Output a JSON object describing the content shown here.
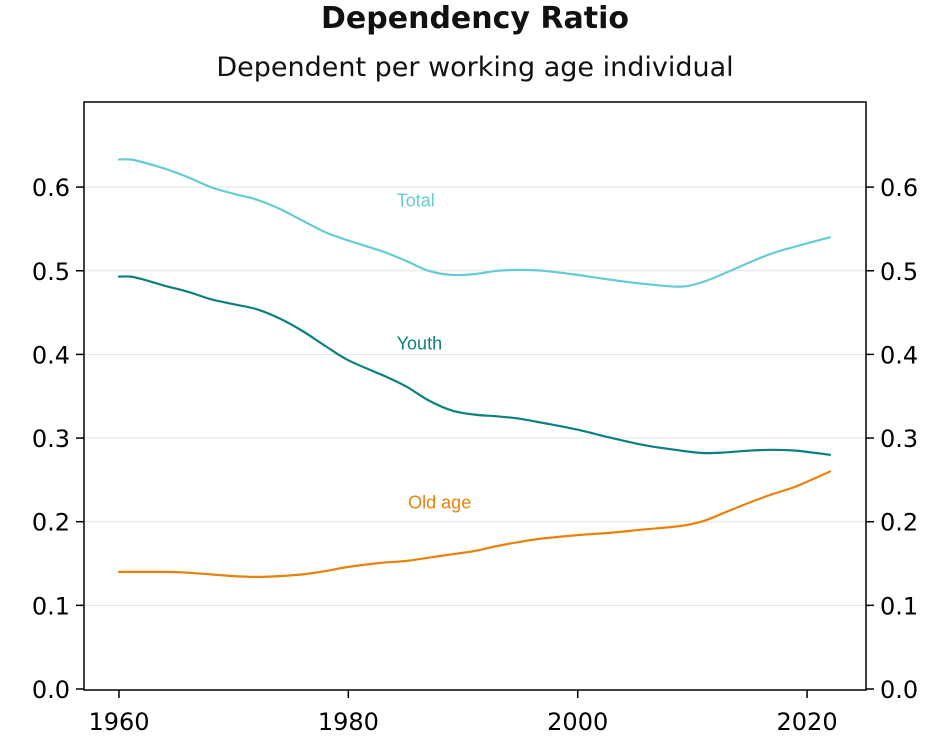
{
  "chart_data": {
    "type": "line",
    "title": "Dependency Ratio",
    "subtitle": "Dependent per working age individual",
    "xlabel": "",
    "ylabel": "",
    "xlim": [
      1960,
      2022
    ],
    "ylim": [
      0.0,
      0.7
    ],
    "x_ticks": [
      1960,
      1980,
      2000,
      2020
    ],
    "y_ticks": [
      "0.0",
      "0.1",
      "0.2",
      "0.3",
      "0.4",
      "0.5",
      "0.6"
    ],
    "grid": true,
    "x": [
      1960,
      1961,
      1962,
      1964,
      1966,
      1968,
      1970,
      1972,
      1974,
      1976,
      1978,
      1980,
      1983,
      1985,
      1987,
      1989,
      1991,
      1993,
      1995,
      1997,
      2000,
      2003,
      2006,
      2009,
      2011,
      2013,
      2015,
      2017,
      2019,
      2022
    ],
    "series": [
      {
        "name": "Total",
        "color": "#66CCD4",
        "values": [
          0.633,
          0.633,
          0.63,
          0.622,
          0.612,
          0.6,
          0.592,
          0.585,
          0.574,
          0.56,
          0.546,
          0.536,
          0.523,
          0.512,
          0.5,
          0.495,
          0.496,
          0.5,
          0.501,
          0.5,
          0.495,
          0.489,
          0.484,
          0.481,
          0.487,
          0.498,
          0.51,
          0.521,
          0.529,
          0.54
        ]
      },
      {
        "name": "Youth",
        "color": "#0A8080",
        "values": [
          0.493,
          0.493,
          0.49,
          0.482,
          0.475,
          0.466,
          0.46,
          0.454,
          0.443,
          0.428,
          0.41,
          0.393,
          0.375,
          0.362,
          0.345,
          0.333,
          0.328,
          0.326,
          0.323,
          0.318,
          0.31,
          0.3,
          0.291,
          0.285,
          0.282,
          0.283,
          0.285,
          0.286,
          0.285,
          0.28
        ]
      },
      {
        "name": "Old age",
        "color": "#E8820C",
        "values": [
          0.14,
          0.14,
          0.14,
          0.14,
          0.139,
          0.137,
          0.135,
          0.134,
          0.135,
          0.137,
          0.141,
          0.146,
          0.151,
          0.153,
          0.157,
          0.161,
          0.165,
          0.171,
          0.176,
          0.18,
          0.184,
          0.187,
          0.191,
          0.195,
          0.201,
          0.212,
          0.223,
          0.233,
          0.242,
          0.26
        ]
      }
    ],
    "annotations": [
      {
        "text": "Total",
        "x": 1985,
        "y": 0.577,
        "color": "#66CCD4"
      },
      {
        "text": "Youth",
        "x": 1985,
        "y": 0.406,
        "color": "#0A8080"
      },
      {
        "text": "Old age",
        "x": 1986,
        "y": 0.216,
        "color": "#E8820C"
      }
    ]
  }
}
